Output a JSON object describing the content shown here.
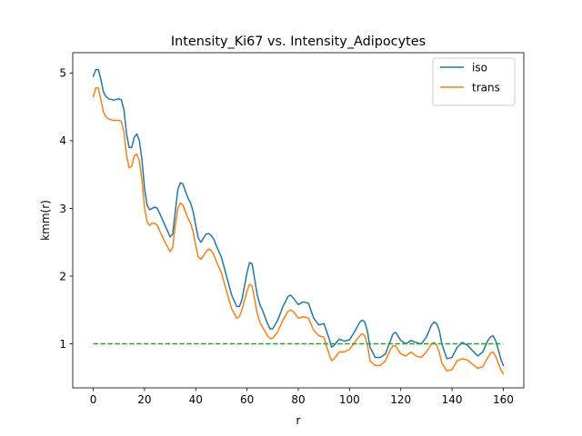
{
  "chart_data": {
    "type": "line",
    "title": "Intensity_Ki67 vs. Intensity_Adipocytes",
    "xlabel": "r",
    "ylabel": "kmm(r)",
    "xlim": [
      -8,
      168
    ],
    "ylim": [
      0.35,
      5.3
    ],
    "xticks": [
      0,
      20,
      40,
      60,
      80,
      100,
      120,
      140,
      160
    ],
    "yticks": [
      1,
      2,
      3,
      4,
      5
    ],
    "grid": false,
    "legend_position": "top-right",
    "series": [
      {
        "name": "iso",
        "color": "#1f77b4",
        "style": "solid",
        "x": [
          0,
          1,
          2,
          3,
          4,
          5,
          6,
          8,
          10,
          11,
          12,
          13,
          14,
          15,
          16,
          17,
          18,
          19,
          20,
          21,
          22,
          23,
          24,
          25,
          26,
          28,
          30,
          31,
          32,
          33,
          34,
          35,
          36,
          37,
          38,
          39,
          40,
          41,
          42,
          43,
          44,
          45,
          46,
          47,
          48,
          50,
          52,
          54,
          56,
          57,
          58,
          60,
          61,
          62,
          63,
          64,
          65,
          66,
          68,
          69,
          70,
          72,
          74,
          76,
          77,
          78,
          80,
          82,
          84,
          86,
          88,
          90,
          92,
          93,
          94,
          96,
          98,
          100,
          102,
          104,
          105,
          106,
          107,
          108,
          110,
          112,
          114,
          116,
          117,
          118,
          120,
          122,
          124,
          126,
          128,
          130,
          132,
          133,
          134,
          135,
          136,
          138,
          140,
          142,
          144,
          146,
          148,
          150,
          152,
          154,
          155,
          156,
          157,
          158,
          159,
          160
        ],
        "y": [
          4.95,
          5.05,
          5.05,
          4.9,
          4.72,
          4.65,
          4.62,
          4.6,
          4.62,
          4.6,
          4.45,
          4.1,
          3.9,
          3.9,
          4.05,
          4.1,
          4.0,
          3.72,
          3.3,
          3.05,
          2.98,
          3.0,
          3.02,
          3.0,
          2.92,
          2.75,
          2.58,
          2.62,
          2.95,
          3.28,
          3.38,
          3.36,
          3.25,
          3.15,
          3.08,
          2.95,
          2.75,
          2.56,
          2.5,
          2.56,
          2.62,
          2.63,
          2.6,
          2.55,
          2.45,
          2.28,
          2.0,
          1.72,
          1.55,
          1.55,
          1.65,
          2.05,
          2.2,
          2.18,
          1.95,
          1.72,
          1.58,
          1.5,
          1.3,
          1.22,
          1.22,
          1.35,
          1.55,
          1.7,
          1.72,
          1.68,
          1.58,
          1.62,
          1.6,
          1.38,
          1.28,
          1.3,
          1.08,
          0.95,
          0.98,
          1.07,
          1.04,
          1.06,
          1.18,
          1.32,
          1.35,
          1.32,
          1.18,
          0.95,
          0.8,
          0.8,
          0.85,
          1.05,
          1.15,
          1.17,
          1.05,
          1.0,
          1.05,
          1.02,
          1.0,
          1.1,
          1.28,
          1.32,
          1.3,
          1.2,
          1.0,
          0.78,
          0.8,
          0.95,
          1.02,
          0.98,
          0.9,
          0.82,
          0.88,
          1.05,
          1.1,
          1.12,
          1.05,
          0.92,
          0.78,
          0.68
        ]
      },
      {
        "name": "trans",
        "color": "#ff7f0e",
        "style": "solid",
        "x": [
          0,
          1,
          2,
          3,
          4,
          5,
          6,
          8,
          10,
          11,
          12,
          13,
          14,
          15,
          16,
          17,
          18,
          19,
          20,
          21,
          22,
          23,
          24,
          25,
          26,
          28,
          30,
          31,
          32,
          33,
          34,
          35,
          36,
          37,
          38,
          39,
          40,
          41,
          42,
          43,
          44,
          45,
          46,
          47,
          48,
          50,
          52,
          54,
          56,
          57,
          58,
          60,
          61,
          62,
          63,
          64,
          65,
          66,
          68,
          69,
          70,
          72,
          74,
          76,
          77,
          78,
          80,
          82,
          84,
          86,
          88,
          90,
          92,
          93,
          94,
          96,
          98,
          100,
          102,
          104,
          105,
          106,
          107,
          108,
          110,
          112,
          114,
          116,
          117,
          118,
          120,
          122,
          124,
          126,
          128,
          130,
          132,
          133,
          134,
          135,
          136,
          138,
          140,
          142,
          144,
          146,
          148,
          150,
          152,
          154,
          155,
          156,
          157,
          158,
          159,
          160
        ],
        "y": [
          4.65,
          4.78,
          4.78,
          4.6,
          4.42,
          4.35,
          4.32,
          4.3,
          4.3,
          4.28,
          4.12,
          3.78,
          3.6,
          3.62,
          3.78,
          3.8,
          3.7,
          3.42,
          3.02,
          2.8,
          2.75,
          2.78,
          2.78,
          2.75,
          2.66,
          2.5,
          2.36,
          2.42,
          2.75,
          3.0,
          3.08,
          3.05,
          2.95,
          2.85,
          2.78,
          2.65,
          2.45,
          2.28,
          2.25,
          2.3,
          2.36,
          2.4,
          2.38,
          2.32,
          2.22,
          2.05,
          1.78,
          1.52,
          1.38,
          1.4,
          1.5,
          1.78,
          1.88,
          1.85,
          1.65,
          1.45,
          1.32,
          1.25,
          1.12,
          1.08,
          1.08,
          1.18,
          1.35,
          1.48,
          1.5,
          1.48,
          1.38,
          1.4,
          1.38,
          1.2,
          1.12,
          1.1,
          0.85,
          0.75,
          0.78,
          0.88,
          0.88,
          0.92,
          1.02,
          1.12,
          1.15,
          1.12,
          0.98,
          0.75,
          0.68,
          0.68,
          0.75,
          0.92,
          0.97,
          0.97,
          0.85,
          0.82,
          0.88,
          0.82,
          0.8,
          0.88,
          1.0,
          1.02,
          0.98,
          0.88,
          0.72,
          0.6,
          0.62,
          0.75,
          0.78,
          0.76,
          0.7,
          0.64,
          0.66,
          0.8,
          0.86,
          0.88,
          0.82,
          0.72,
          0.62,
          0.56
        ]
      },
      {
        "name": "",
        "color": "#2ca02c",
        "style": "dashed",
        "x": [
          0,
          160
        ],
        "y": [
          1,
          1
        ]
      }
    ]
  }
}
